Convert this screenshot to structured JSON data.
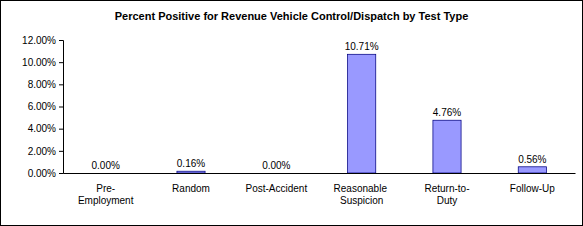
{
  "chart_data": {
    "type": "bar",
    "title": "Percent Positive for Revenue Vehicle Control/Dispatch by Test Type",
    "categories": [
      "Pre-Employment",
      "Random",
      "Post-Accident",
      "Reasonable Suspicion",
      "Return-to-Duty",
      "Follow-Up"
    ],
    "values": [
      0,
      0.16,
      0,
      10.71,
      4.76,
      0.56
    ],
    "value_labels": [
      "0.00%",
      "0.16%",
      "0.00%",
      "10.71%",
      "4.76%",
      "0.56%"
    ],
    "color": "#9999ff",
    "ylim": [
      0,
      12
    ],
    "yticks": [
      {
        "value": 0,
        "label": "0.00%"
      },
      {
        "value": 2,
        "label": "2.00%"
      },
      {
        "value": 4,
        "label": "4.00%"
      },
      {
        "value": 6,
        "label": "6.00%"
      },
      {
        "value": 8,
        "label": "8.00%"
      },
      {
        "value": 10,
        "label": "10.00%"
      },
      {
        "value": 12,
        "label": "12.00%"
      }
    ],
    "grid": false,
    "data_labels": true
  }
}
